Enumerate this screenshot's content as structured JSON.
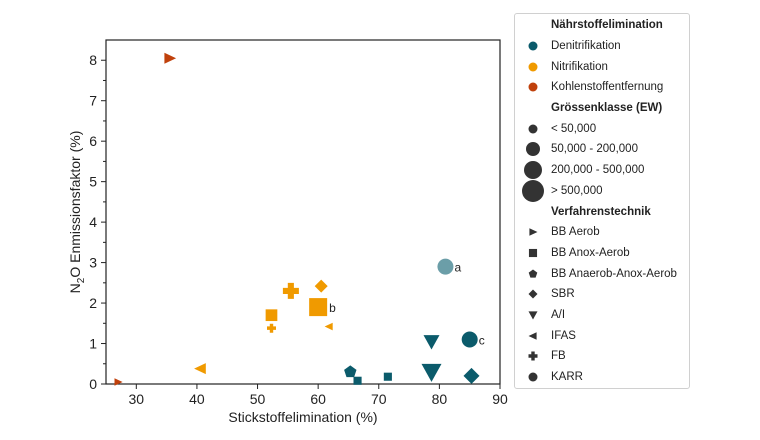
{
  "chart_data": {
    "type": "scatter",
    "xlabel": "Stickstoffelimination (%)",
    "ylabel_main": "N",
    "ylabel_sub": "2",
    "ylabel_rest": "O Enmissionsfaktor (%)",
    "xlim": [
      25,
      90
    ],
    "ylim": [
      0,
      8.5
    ],
    "xticks": [
      30,
      40,
      50,
      60,
      70,
      80,
      90
    ],
    "yticks": [
      0,
      1,
      2,
      3,
      4,
      5,
      6,
      7,
      8
    ],
    "colors": {
      "Denitrifikation": "#0b5b6b",
      "Nitrifikation": "#f09a00",
      "Kohlenstoffentfernung": "#c0410c",
      "highlight": "#6b9ea8"
    },
    "points": [
      {
        "x": 35.5,
        "y": 8.05,
        "group": "Kohlenstoffentfernung",
        "shape": "triangle-right",
        "size": 2
      },
      {
        "x": 27,
        "y": 0.05,
        "group": "Kohlenstoffentfernung",
        "shape": "triangle-right",
        "size": 1
      },
      {
        "x": 81,
        "y": 2.9,
        "group": "highlight",
        "shape": "circle",
        "size": 3,
        "label": "a"
      },
      {
        "x": 85,
        "y": 1.1,
        "group": "Denitrifikation",
        "shape": "circle",
        "size": 3,
        "label": "c"
      },
      {
        "x": 78.7,
        "y": 1.05,
        "group": "Denitrifikation",
        "shape": "triangle-down",
        "size": 3
      },
      {
        "x": 78.7,
        "y": 0.3,
        "group": "Denitrifikation",
        "shape": "triangle-down",
        "size": 4
      },
      {
        "x": 85.3,
        "y": 0.2,
        "group": "Denitrifikation",
        "shape": "diamond",
        "size": 3
      },
      {
        "x": 65.3,
        "y": 0.3,
        "group": "Denitrifikation",
        "shape": "pentagon",
        "size": 2
      },
      {
        "x": 66.5,
        "y": 0.08,
        "group": "Denitrifikation",
        "shape": "square",
        "size": 1
      },
      {
        "x": 71.5,
        "y": 0.18,
        "group": "Denitrifikation",
        "shape": "square",
        "size": 1
      },
      {
        "x": 52.3,
        "y": 1.7,
        "group": "Nitrifikation",
        "shape": "square",
        "size": 2
      },
      {
        "x": 52.3,
        "y": 1.38,
        "group": "Nitrifikation",
        "shape": "plus",
        "size": 1
      },
      {
        "x": 55.5,
        "y": 2.3,
        "group": "Nitrifikation",
        "shape": "plus",
        "size": 3
      },
      {
        "x": 60.5,
        "y": 2.42,
        "group": "Nitrifikation",
        "shape": "diamond",
        "size": 2
      },
      {
        "x": 60,
        "y": 1.9,
        "group": "Nitrifikation",
        "shape": "square",
        "size": 4,
        "label": "b"
      },
      {
        "x": 61.8,
        "y": 1.42,
        "group": "Nitrifikation",
        "shape": "triangle-left",
        "size": 1
      },
      {
        "x": 40.6,
        "y": 0.38,
        "group": "Nitrifikation",
        "shape": "triangle-left",
        "size": 2
      }
    ],
    "legend": {
      "placement": "right",
      "sections": [
        {
          "title": "Nährstoffelimination",
          "items": [
            {
              "label": "Denitrifikation",
              "shape": "circle",
              "color": "#0b5b6b",
              "size": 1
            },
            {
              "label": "Nitrifikation",
              "shape": "circle",
              "color": "#f09a00",
              "size": 1
            },
            {
              "label": "Kohlenstoffentfernung",
              "shape": "circle",
              "color": "#c0410c",
              "size": 1
            }
          ]
        },
        {
          "title": "Grössenklasse (EW)",
          "items": [
            {
              "label": "< 50,000",
              "shape": "circle",
              "color": "#333333",
              "size": 1
            },
            {
              "label": "50,000 - 200,000",
              "shape": "circle",
              "color": "#333333",
              "size": 2
            },
            {
              "label": "200,000 - 500,000",
              "shape": "circle",
              "color": "#333333",
              "size": 3
            },
            {
              "label": "> 500,000",
              "shape": "circle",
              "color": "#333333",
              "size": 4
            }
          ]
        },
        {
          "title": "Verfahrenstechnik",
          "items": [
            {
              "label": "BB Aerob",
              "shape": "triangle-right",
              "color": "#333333",
              "size": 1
            },
            {
              "label": "BB Anox-Aerob",
              "shape": "square",
              "color": "#333333",
              "size": 1
            },
            {
              "label": "BB Anaerob-Anox-Aerob",
              "shape": "pentagon",
              "color": "#333333",
              "size": 1
            },
            {
              "label": "SBR",
              "shape": "diamond",
              "color": "#333333",
              "size": 1
            },
            {
              "label": "A/I",
              "shape": "triangle-down",
              "color": "#333333",
              "size": 1
            },
            {
              "label": "IFAS",
              "shape": "triangle-left",
              "color": "#333333",
              "size": 1
            },
            {
              "label": "FB",
              "shape": "plus",
              "color": "#333333",
              "size": 1
            },
            {
              "label": "KARR",
              "shape": "circle",
              "color": "#333333",
              "size": 1
            }
          ]
        }
      ]
    }
  }
}
